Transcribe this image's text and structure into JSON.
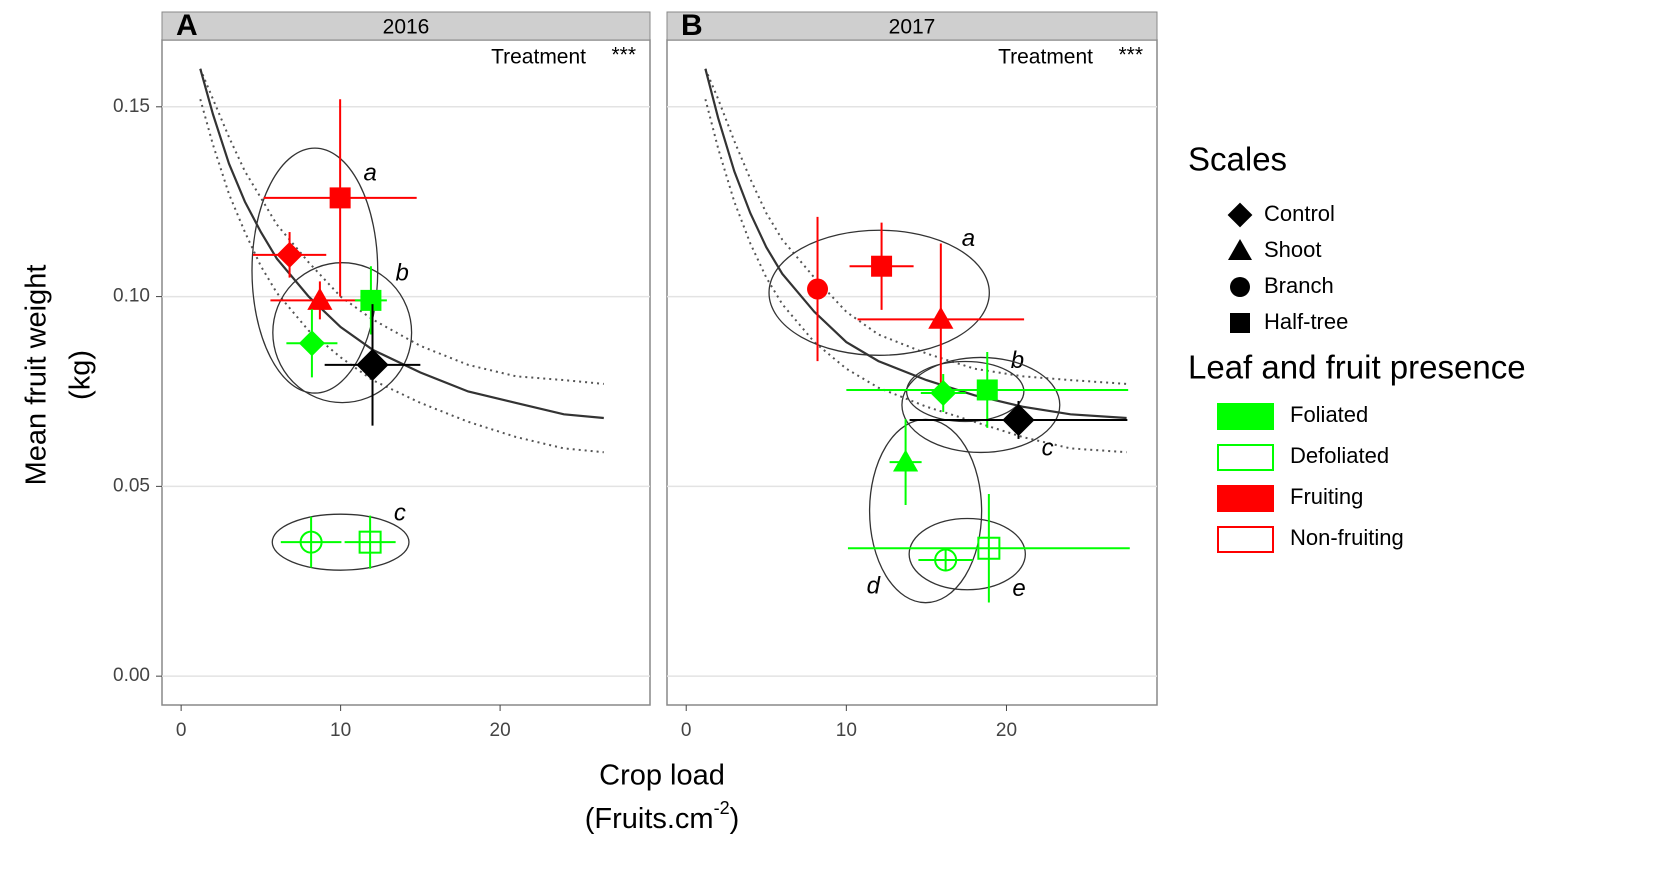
{
  "chart_data": [
    {
      "type": "scatter",
      "panel": "A",
      "title": "2016",
      "annotation": "Treatment",
      "significance": "***",
      "xlim": [
        -1.2,
        29.4
      ],
      "ylim": [
        -0.0076,
        0.1676
      ],
      "xticks": [
        0,
        10,
        20
      ],
      "yticks": [
        {
          "value": 0,
          "label": "0.00"
        },
        {
          "value": 0.05,
          "label": "0.05"
        },
        {
          "value": 0.1,
          "label": "0.10"
        },
        0.15
      ],
      "grid": true,
      "points": [
        {
          "shape": "diamond",
          "color": "#ff0000",
          "filled": true,
          "x": 6.8,
          "y": 0.111,
          "xerr": 2.3,
          "yerr": 0.006
        },
        {
          "shape": "square",
          "color": "#ff0000",
          "filled": true,
          "x": 9.97,
          "y": 0.126,
          "xerr": 4.8,
          "yerr": 0.026
        },
        {
          "shape": "triangle",
          "color": "#ff0000",
          "filled": true,
          "x": 8.7,
          "y": 0.099,
          "xerr": 3.1,
          "yerr": 0.005
        },
        {
          "shape": "square",
          "color": "#00ff00",
          "filled": true,
          "x": 11.9,
          "y": 0.099,
          "xerr": 1.0,
          "yerr": 0.009
        },
        {
          "shape": "diamond",
          "color": "#00ff00",
          "filled": true,
          "x": 8.2,
          "y": 0.0877,
          "xerr": 1.6,
          "yerr": 0.009
        },
        {
          "shape": "diamond",
          "color": "#000000",
          "filled": true,
          "x": 12.0,
          "y": 0.082,
          "xerr": 3.0,
          "yerr": 0.016
        },
        {
          "shape": "circle",
          "color": "#00ff00",
          "filled": false,
          "x": 8.15,
          "y": 0.0353,
          "xerr": 1.9,
          "yerr": 0.0067
        },
        {
          "shape": "square",
          "color": "#00ff00",
          "filled": false,
          "x": 11.85,
          "y": 0.0353,
          "xerr": 1.6,
          "yerr": 0.007
        }
      ],
      "fit": {
        "x": [
          1.2,
          2,
          3,
          4,
          5,
          6,
          8,
          10,
          12,
          15,
          18,
          21,
          24,
          26.5
        ],
        "y": [
          0.16,
          0.148,
          0.135,
          0.125,
          0.117,
          0.11,
          0.1,
          0.092,
          0.086,
          0.08,
          0.075,
          0.072,
          0.069,
          0.068
        ],
        "upper": [
          0.16,
          0.152,
          0.142,
          0.133,
          0.126,
          0.119,
          0.109,
          0.1,
          0.094,
          0.087,
          0.082,
          0.079,
          0.078,
          0.077
        ],
        "lower": [
          0.152,
          0.14,
          0.127,
          0.117,
          0.108,
          0.101,
          0.091,
          0.084,
          0.078,
          0.072,
          0.067,
          0.063,
          0.06,
          0.059
        ]
      },
      "groups": [
        {
          "label": "a",
          "members": [
            0,
            1,
            2,
            4
          ],
          "label_corner": "ne"
        },
        {
          "label": "b",
          "members": [
            3,
            4,
            5
          ],
          "label_corner": "ne"
        },
        {
          "label": "c",
          "members": [
            6,
            7
          ],
          "label_corner": "ne"
        }
      ]
    },
    {
      "type": "scatter",
      "panel": "B",
      "title": "2017",
      "annotation": "Treatment",
      "significance": "***",
      "xlim": [
        -1.2,
        29.4
      ],
      "ylim": [
        -0.0076,
        0.1676
      ],
      "xticks": [
        0,
        10,
        20
      ],
      "yticks": [
        0,
        0.05,
        0.1,
        0.15
      ],
      "grid": true,
      "points": [
        {
          "shape": "circle",
          "color": "#ff0000",
          "filled": true,
          "x": 8.2,
          "y": 0.102,
          "xerr": 0.6,
          "yerr": 0.019
        },
        {
          "shape": "square",
          "color": "#ff0000",
          "filled": true,
          "x": 12.2,
          "y": 0.108,
          "xerr": 2.0,
          "yerr": 0.0115
        },
        {
          "shape": "triangle",
          "color": "#ff0000",
          "filled": true,
          "x": 15.9,
          "y": 0.094,
          "xerr": 5.2,
          "yerr": 0.02
        },
        {
          "shape": "diamond",
          "color": "#00ff00",
          "filled": true,
          "x": 16.05,
          "y": 0.0746,
          "xerr": 1.4,
          "yerr": 0.005
        },
        {
          "shape": "square",
          "color": "#00ff00",
          "filled": true,
          "x": 18.8,
          "y": 0.0754,
          "xerr": 8.8,
          "yerr": 0.01
        },
        {
          "shape": "diamond",
          "color": "#000000",
          "filled": true,
          "x": 20.75,
          "y": 0.0675,
          "xerr": 6.8,
          "yerr": 0.005
        },
        {
          "shape": "triangle",
          "color": "#00ff00",
          "filled": true,
          "x": 13.7,
          "y": 0.0564,
          "xerr": 1.0,
          "yerr": 0.0113
        },
        {
          "shape": "circle",
          "color": "#00ff00",
          "filled": false,
          "x": 16.2,
          "y": 0.0306,
          "xerr": 1.7,
          "yerr": 0.003
        },
        {
          "shape": "square",
          "color": "#00ff00",
          "filled": false,
          "x": 18.9,
          "y": 0.0337,
          "xerr": 8.8,
          "yerr": 0.0143
        }
      ],
      "fit": {
        "x": [
          1.2,
          2,
          3,
          4,
          5,
          6,
          8,
          10,
          12,
          15,
          18,
          21,
          24,
          27.5
        ],
        "y": [
          0.16,
          0.147,
          0.133,
          0.122,
          0.113,
          0.106,
          0.096,
          0.088,
          0.083,
          0.078,
          0.074,
          0.071,
          0.069,
          0.068
        ],
        "upper": [
          0.16,
          0.152,
          0.141,
          0.131,
          0.122,
          0.115,
          0.105,
          0.096,
          0.09,
          0.085,
          0.081,
          0.079,
          0.078,
          0.077
        ],
        "lower": [
          0.152,
          0.139,
          0.125,
          0.114,
          0.105,
          0.098,
          0.088,
          0.081,
          0.076,
          0.071,
          0.067,
          0.063,
          0.06,
          0.059
        ]
      },
      "groups": [
        {
          "label": "a",
          "members": [
            0,
            1,
            2
          ],
          "label_corner": "ne"
        },
        {
          "label": "b",
          "members": [
            3,
            4
          ],
          "label_corner": "ne"
        },
        {
          "label": "c",
          "members": [
            3,
            4,
            5
          ],
          "label_corner": "se"
        },
        {
          "label": "d",
          "members": [
            6,
            7
          ],
          "label_corner": "sw"
        },
        {
          "label": "e",
          "members": [
            7,
            8
          ],
          "label_corner": "se"
        }
      ]
    }
  ],
  "y_label": [
    "Mean fruit weight",
    "(kg)"
  ],
  "x_label": {
    "line1": "Crop load",
    "line2": "(Fruits.cm",
    "sup": "-2",
    "end": ")"
  },
  "legend": {
    "shape_title": "Scales",
    "shapes": [
      {
        "label": "Control",
        "shape": "diamond"
      },
      {
        "label": "Shoot",
        "shape": "triangle"
      },
      {
        "label": "Branch",
        "shape": "circle"
      },
      {
        "label": "Half-tree",
        "shape": "square"
      }
    ],
    "fill_title": "Leaf and fruit presence",
    "fills": [
      {
        "label": "Foliated",
        "color": "#00ff00",
        "filled": true
      },
      {
        "label": "Defoliated",
        "color": "#00ff00",
        "filled": false
      },
      {
        "label": "Fruiting",
        "color": "#ff0000",
        "filled": true
      },
      {
        "label": "Non-fruiting",
        "color": "#ff0000",
        "filled": false
      }
    ]
  }
}
